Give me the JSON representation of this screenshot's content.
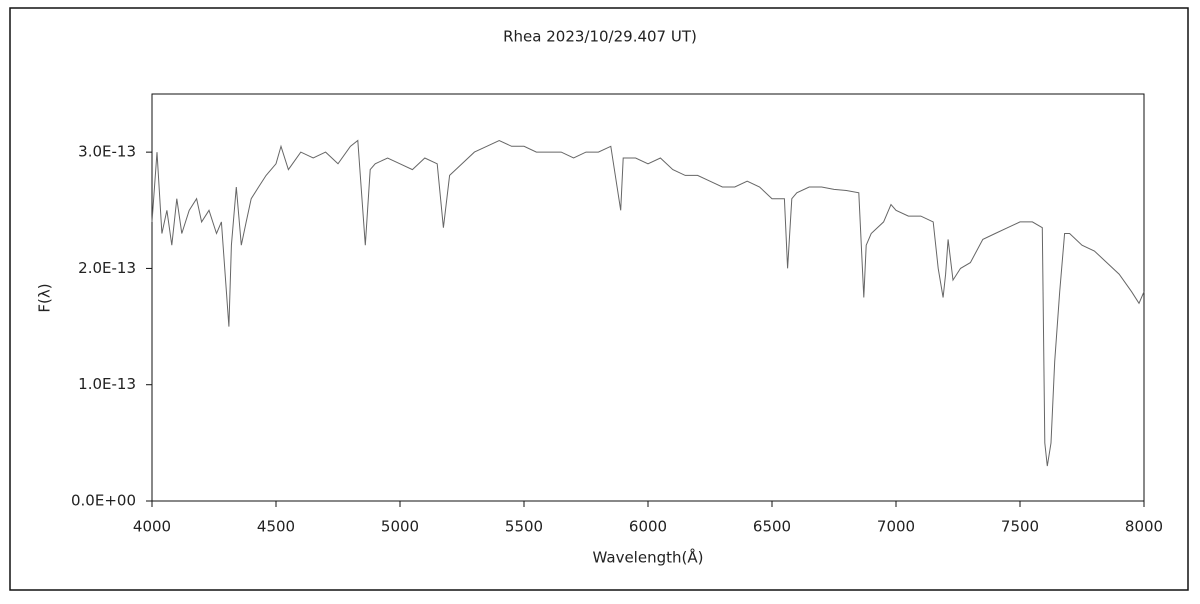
{
  "chart_data": {
    "type": "line",
    "title": "Rhea  2023/10/29.407 UT)",
    "xlabel": "Wavelength(Å)",
    "ylabel": "F(λ)",
    "color": "#666666",
    "x": [
      4000,
      4020,
      4040,
      4060,
      4080,
      4100,
      4120,
      4150,
      4180,
      4200,
      4230,
      4260,
      4280,
      4300,
      4310,
      4320,
      4340,
      4360,
      4380,
      4400,
      4430,
      4460,
      4500,
      4520,
      4550,
      4600,
      4650,
      4700,
      4750,
      4800,
      4830,
      4860,
      4880,
      4900,
      4950,
      5000,
      5050,
      5100,
      5150,
      5175,
      5200,
      5250,
      5300,
      5350,
      5400,
      5450,
      5500,
      5550,
      5600,
      5650,
      5700,
      5750,
      5800,
      5850,
      5890,
      5900,
      5950,
      6000,
      6050,
      6100,
      6150,
      6200,
      6250,
      6300,
      6350,
      6400,
      6450,
      6500,
      6550,
      6563,
      6580,
      6600,
      6650,
      6700,
      6750,
      6800,
      6850,
      6870,
      6880,
      6900,
      6950,
      6980,
      7000,
      7050,
      7100,
      7150,
      7170,
      7190,
      7200,
      7210,
      7230,
      7260,
      7300,
      7350,
      7400,
      7450,
      7500,
      7550,
      7590,
      7600,
      7610,
      7625,
      7640,
      7660,
      7680,
      7700,
      7750,
      7800,
      7850,
      7900,
      7950,
      7980,
      8000
    ],
    "values": [
      2.4e-13,
      3e-13,
      2.3e-13,
      2.5e-13,
      2.2e-13,
      2.6e-13,
      2.3e-13,
      2.5e-13,
      2.6e-13,
      2.4e-13,
      2.5e-13,
      2.3e-13,
      2.4e-13,
      1.8e-13,
      1.5e-13,
      2.2e-13,
      2.7e-13,
      2.2e-13,
      2.4e-13,
      2.6e-13,
      2.7e-13,
      2.8e-13,
      2.9e-13,
      3.05e-13,
      2.85e-13,
      3e-13,
      2.95e-13,
      3e-13,
      2.9e-13,
      3.05e-13,
      3.1e-13,
      2.2e-13,
      2.85e-13,
      2.9e-13,
      2.95e-13,
      2.9e-13,
      2.85e-13,
      2.95e-13,
      2.9e-13,
      2.35e-13,
      2.8e-13,
      2.9e-13,
      3e-13,
      3.05e-13,
      3.1e-13,
      3.05e-13,
      3.05e-13,
      3e-13,
      3e-13,
      3e-13,
      2.95e-13,
      3e-13,
      3e-13,
      3.05e-13,
      2.5e-13,
      2.95e-13,
      2.95e-13,
      2.9e-13,
      2.95e-13,
      2.85e-13,
      2.8e-13,
      2.8e-13,
      2.75e-13,
      2.7e-13,
      2.7e-13,
      2.75e-13,
      2.7e-13,
      2.6e-13,
      2.6e-13,
      2e-13,
      2.6e-13,
      2.65e-13,
      2.7e-13,
      2.7e-13,
      2.68e-13,
      2.67e-13,
      2.65e-13,
      1.75e-13,
      2.2e-13,
      2.3e-13,
      2.4e-13,
      2.55e-13,
      2.5e-13,
      2.45e-13,
      2.45e-13,
      2.4e-13,
      2e-13,
      1.75e-13,
      1.95e-13,
      2.25e-13,
      1.9e-13,
      2e-13,
      2.05e-13,
      2.25e-13,
      2.3e-13,
      2.35e-13,
      2.4e-13,
      2.4e-13,
      2.35e-13,
      5e-14,
      3e-14,
      5e-14,
      1.2e-13,
      1.8e-13,
      2.3e-13,
      2.3e-13,
      2.2e-13,
      2.15e-13,
      2.05e-13,
      1.95e-13,
      1.8e-13,
      1.7e-13,
      1.8e-13
    ],
    "xlim": [
      4000,
      8000
    ],
    "xticks": [
      4000,
      4500,
      5000,
      5500,
      6000,
      6500,
      7000,
      7500,
      8000
    ],
    "ylim": [
      0,
      3.5e-13
    ],
    "yticks": [
      {
        "value": 0,
        "label": "0.0E+00"
      },
      {
        "value": 1e-13,
        "label": "1.0E-13"
      },
      {
        "value": 2e-13,
        "label": "2.0E-13"
      },
      {
        "value": 3e-13,
        "label": "3.0E-13"
      }
    ]
  }
}
